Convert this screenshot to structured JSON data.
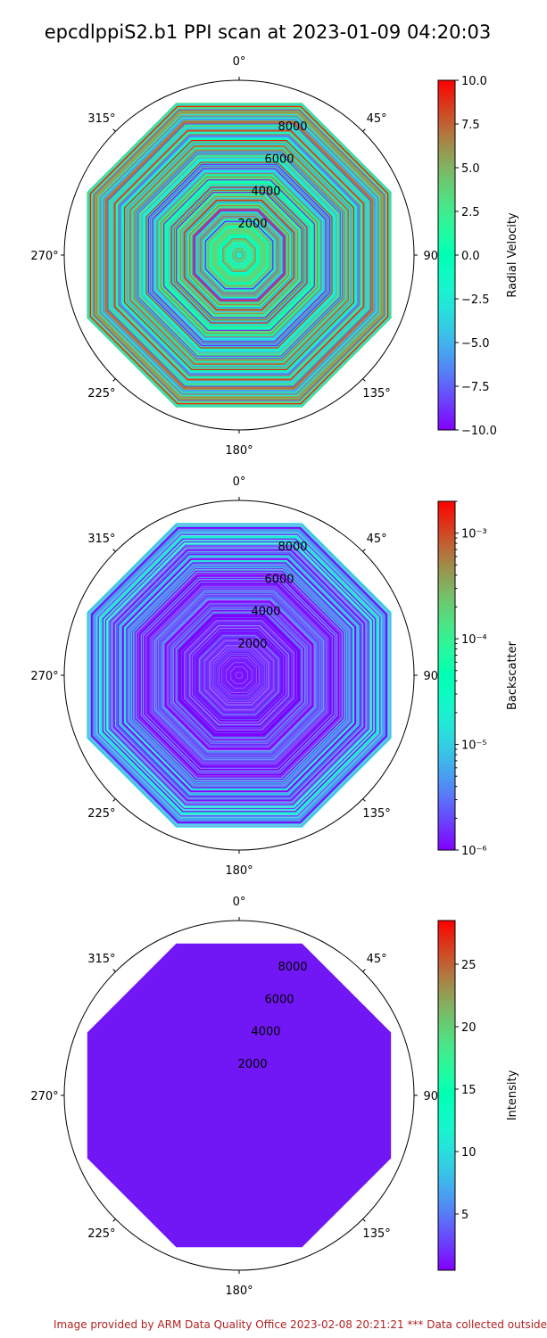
{
  "title": "epcdlppiS2.b1 PPI scan at 2023-01-09 04:20:03",
  "footer": "Image provided by ARM Data Quality Office 2023-02-08 20:21:21    *** Data collected outside",
  "chart_data": [
    {
      "type": "heatmap",
      "projection": "polar",
      "theta_direction": "clockwise",
      "theta_zero": "north",
      "angle_labels": [
        "0°",
        "45°",
        "90°",
        "135°",
        "180°",
        "225°",
        "270°",
        "315°"
      ],
      "range_labels": [
        "2000",
        "4000",
        "6000",
        "8000"
      ],
      "range_max": 10000,
      "variable": "Radial Velocity",
      "colormap": "rainbow",
      "colorbar": {
        "label": "Radial Velocity",
        "scale": "linear",
        "min": -10.0,
        "max": 10.0,
        "ticks": [
          -10.0,
          -7.5,
          -5.0,
          -2.5,
          0.0,
          2.5,
          5.0,
          7.5,
          10.0
        ],
        "tick_labels": [
          "−10.0",
          "−7.5",
          "−5.0",
          "−2.5",
          "0.0",
          "2.5",
          "5.0",
          "7.5",
          "10.0"
        ]
      },
      "pattern": "noisy"
    },
    {
      "type": "heatmap",
      "projection": "polar",
      "theta_direction": "clockwise",
      "theta_zero": "north",
      "angle_labels": [
        "0°",
        "45°",
        "90°",
        "135°",
        "180°",
        "225°",
        "270°",
        "315°"
      ],
      "range_labels": [
        "2000",
        "4000",
        "6000",
        "8000"
      ],
      "range_max": 10000,
      "variable": "Backscatter",
      "colormap": "rainbow",
      "colorbar": {
        "label": "Backscatter",
        "scale": "log",
        "min": 1e-06,
        "max": 0.002,
        "ticks": [
          1e-06,
          1e-05,
          0.0001,
          0.001
        ],
        "tick_labels": [
          "10⁻⁶",
          "10⁻⁵",
          "10⁻⁴",
          "10⁻³"
        ]
      },
      "pattern": "low-near-increasing-out"
    },
    {
      "type": "heatmap",
      "projection": "polar",
      "theta_direction": "clockwise",
      "theta_zero": "north",
      "angle_labels": [
        "0°",
        "45°",
        "90°",
        "135°",
        "180°",
        "225°",
        "270°",
        "315°"
      ],
      "range_labels": [
        "2000",
        "4000",
        "6000",
        "8000"
      ],
      "range_max": 10000,
      "variable": "Intensity",
      "colormap": "rainbow",
      "colorbar": {
        "label": "Intensity",
        "scale": "linear",
        "min": 0.5,
        "max": 28.5,
        "ticks": [
          5,
          10,
          15,
          20,
          25
        ],
        "tick_labels": [
          "5",
          "10",
          "15",
          "20",
          "25"
        ]
      },
      "pattern": "uniform",
      "uniform_value": 1
    }
  ]
}
